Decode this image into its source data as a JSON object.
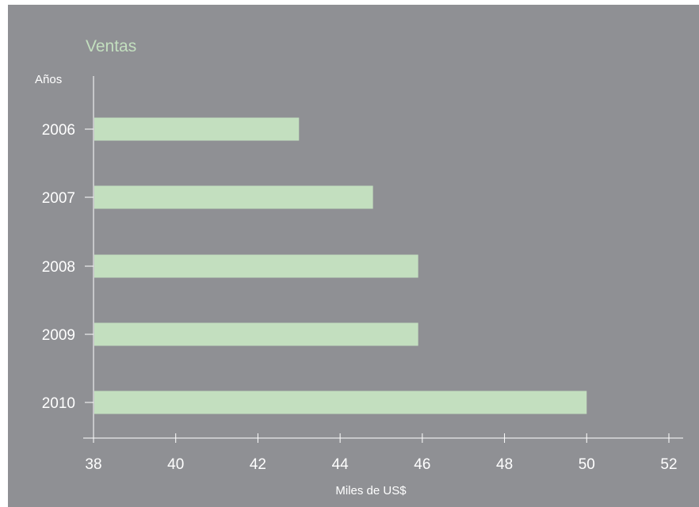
{
  "chart_data": {
    "type": "bar",
    "orientation": "horizontal",
    "title": "Ventas",
    "ylabel": "Años",
    "xlabel": "Miles de US$",
    "categories": [
      "2006",
      "2007",
      "2008",
      "2009",
      "2010"
    ],
    "values": [
      43.0,
      44.8,
      45.9,
      45.9,
      50.0
    ],
    "xlim": [
      38,
      52
    ],
    "xticks": [
      "38",
      "40",
      "42",
      "44",
      "46",
      "48",
      "50",
      "52"
    ],
    "grid": false,
    "legend": "none",
    "colors": {
      "background": "#8f9094",
      "bar": "#c3dfbf",
      "title": "#c3dfbf",
      "axis": "#ffffff",
      "text": "#ffffff"
    }
  }
}
